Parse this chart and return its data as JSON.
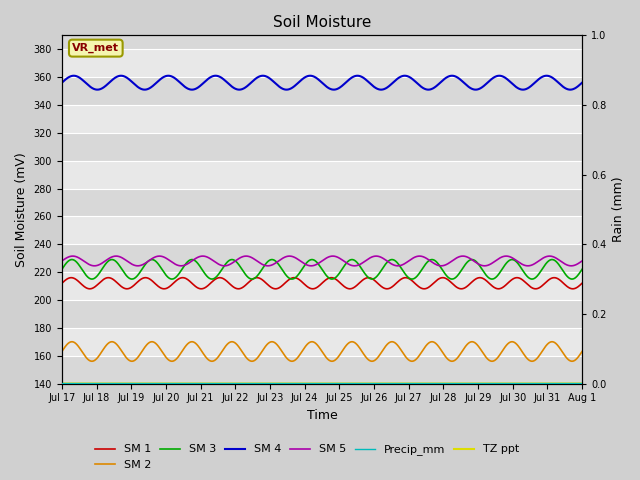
{
  "title": "Soil Moisture",
  "xlabel": "Time",
  "ylabel_left": "Soil Moisture (mV)",
  "ylabel_right": "Rain (mm)",
  "ylim_left": [
    140,
    390
  ],
  "ylim_right": [
    0.0,
    1.0
  ],
  "yticks_left": [
    140,
    160,
    180,
    200,
    220,
    240,
    260,
    280,
    300,
    320,
    340,
    360,
    380
  ],
  "yticks_right": [
    0.0,
    0.2,
    0.4,
    0.6,
    0.8,
    1.0
  ],
  "sm1_color": "#cc0000",
  "sm2_color": "#dd8800",
  "sm3_color": "#00aa00",
  "sm4_color": "#0000cc",
  "sm5_color": "#aa00aa",
  "precip_color": "#00bbbb",
  "tz_color": "#dddd00",
  "sm1_base": 212,
  "sm1_amp": 4,
  "sm2_base": 163,
  "sm2_amp": 7,
  "sm3_base": 222,
  "sm3_amp": 7,
  "sm4_base": 356,
  "sm4_amp": 5,
  "sm5_base": 228,
  "sm5_amp": 3.5,
  "tz_base": 140,
  "freq_sm1": 14,
  "freq_sm2": 13,
  "freq_sm3": 13,
  "freq_sm4": 11,
  "freq_sm5": 12,
  "annotation_text": "VR_met",
  "plot_bg_light": "#e8e8e8",
  "plot_bg_dark": "#d8d8d8",
  "fig_bg": "#d0d0d0"
}
